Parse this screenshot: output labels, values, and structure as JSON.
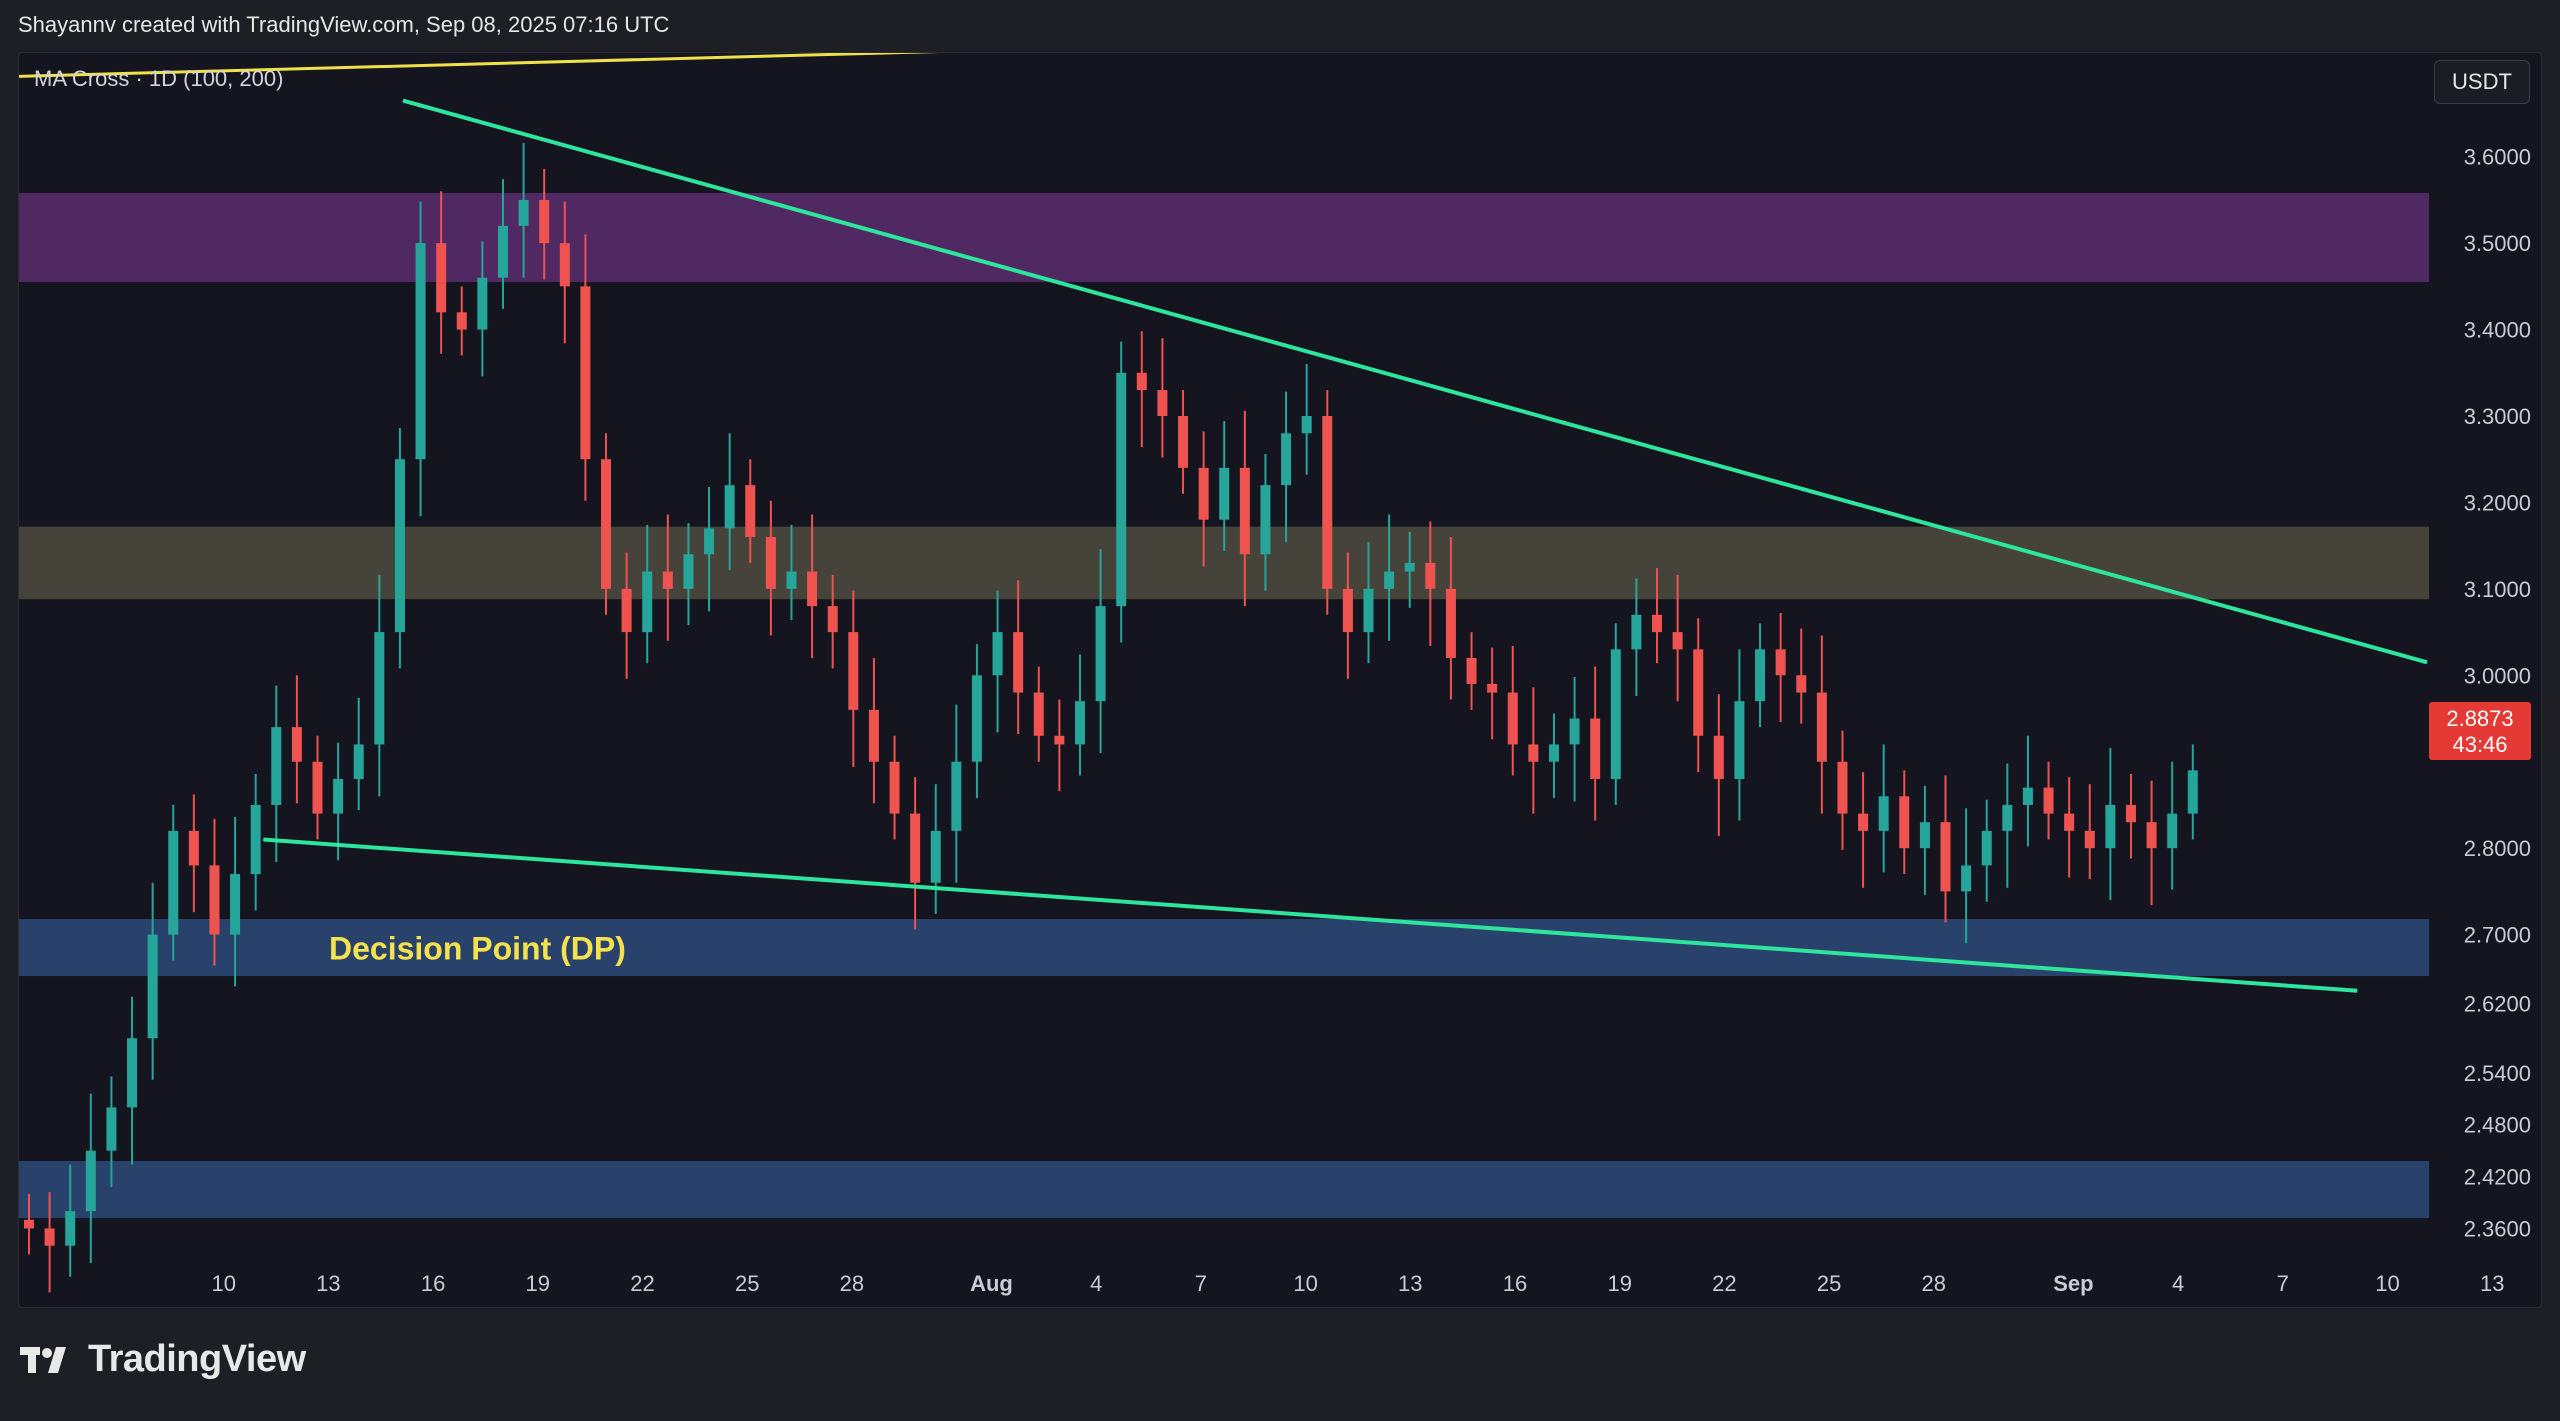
{
  "header": {
    "credit": "Shayannv created with TradingView.com, Sep 08, 2025 07:16 UTC"
  },
  "indicator_label": "MA Cross · 1D (100, 200)",
  "currency_button": "USDT",
  "current_price": {
    "value": "2.8873",
    "countdown": "43:46"
  },
  "brand": {
    "name": "TradingView",
    "logo_icon": "tradingview-logo-icon"
  },
  "chart_data": {
    "type": "candlestick",
    "y_ticks": [
      "3.6000",
      "3.5000",
      "3.4000",
      "3.3000",
      "3.2000",
      "3.1000",
      "3.0000",
      "2.8000",
      "2.7000",
      "2.6200",
      "2.5400",
      "2.4800",
      "2.4200",
      "2.3600"
    ],
    "x_ticks": [
      "10",
      "13",
      "16",
      "19",
      "22",
      "25",
      "28",
      "Aug",
      "4",
      "7",
      "10",
      "13",
      "16",
      "19",
      "22",
      "25",
      "28",
      "Sep",
      "4",
      "7",
      "10",
      "13"
    ],
    "ylim": [
      2.32,
      3.72
    ],
    "zones": [
      {
        "name": "purple",
        "from": 3.455,
        "to": 3.558,
        "color": "#5b2d6e"
      },
      {
        "name": "olive",
        "from": 3.088,
        "to": 3.172,
        "color": "#4f4c3f"
      },
      {
        "name": "dp",
        "from": 2.652,
        "to": 2.718,
        "color": "#2b4a7a",
        "label": "Decision Point (DP)"
      },
      {
        "name": "low",
        "from": 2.372,
        "to": 2.438,
        "color": "#2b4a7a"
      }
    ],
    "trendlines": [
      {
        "name": "upper-yellow",
        "color": "#f0e14a",
        "points": [
          [
            "Jul 7",
            3.693
          ],
          [
            "Sep 12",
            3.766
          ]
        ]
      },
      {
        "name": "wedge-top",
        "color": "#2ee59d",
        "points": [
          [
            "Jul 18",
            3.665
          ],
          [
            "Sep 14",
            3.015
          ]
        ]
      },
      {
        "name": "wedge-bottom",
        "color": "#2ee59d",
        "points": [
          [
            "Jul 14",
            2.81
          ],
          [
            "Sep 12",
            2.635
          ]
        ]
      }
    ],
    "candles_close": [
      [
        0,
        2.36
      ],
      [
        1,
        2.34
      ],
      [
        2,
        2.38
      ],
      [
        3,
        2.45
      ],
      [
        4,
        2.5
      ],
      [
        5,
        2.58
      ],
      [
        6,
        2.7
      ],
      [
        7,
        2.82
      ],
      [
        8,
        2.78
      ],
      [
        9,
        2.7
      ],
      [
        10,
        2.77
      ],
      [
        11,
        2.85
      ],
      [
        12,
        2.94
      ],
      [
        13,
        2.9
      ],
      [
        14,
        2.84
      ],
      [
        15,
        2.88
      ],
      [
        16,
        2.92
      ],
      [
        17,
        3.05
      ],
      [
        18,
        3.25
      ],
      [
        19,
        3.5
      ],
      [
        20,
        3.42
      ],
      [
        21,
        3.4
      ],
      [
        22,
        3.46
      ],
      [
        23,
        3.52
      ],
      [
        24,
        3.55
      ],
      [
        25,
        3.5
      ],
      [
        26,
        3.45
      ],
      [
        27,
        3.25
      ],
      [
        28,
        3.1
      ],
      [
        29,
        3.05
      ],
      [
        30,
        3.12
      ],
      [
        31,
        3.1
      ],
      [
        32,
        3.14
      ],
      [
        33,
        3.17
      ],
      [
        34,
        3.22
      ],
      [
        35,
        3.16
      ],
      [
        36,
        3.1
      ],
      [
        37,
        3.12
      ],
      [
        38,
        3.08
      ],
      [
        39,
        3.05
      ],
      [
        40,
        2.96
      ],
      [
        41,
        2.9
      ],
      [
        42,
        2.84
      ],
      [
        43,
        2.76
      ],
      [
        44,
        2.82
      ],
      [
        45,
        2.9
      ],
      [
        46,
        3.0
      ],
      [
        47,
        3.05
      ],
      [
        48,
        2.98
      ],
      [
        49,
        2.93
      ],
      [
        50,
        2.92
      ],
      [
        51,
        2.97
      ],
      [
        52,
        3.08
      ],
      [
        53,
        3.35
      ],
      [
        54,
        3.33
      ],
      [
        55,
        3.3
      ],
      [
        56,
        3.24
      ],
      [
        57,
        3.18
      ],
      [
        58,
        3.24
      ],
      [
        59,
        3.14
      ],
      [
        60,
        3.22
      ],
      [
        61,
        3.28
      ],
      [
        62,
        3.3
      ],
      [
        63,
        3.1
      ],
      [
        64,
        3.05
      ],
      [
        65,
        3.1
      ],
      [
        66,
        3.12
      ],
      [
        67,
        3.13
      ],
      [
        68,
        3.1
      ],
      [
        69,
        3.02
      ],
      [
        70,
        2.99
      ],
      [
        71,
        2.98
      ],
      [
        72,
        2.92
      ],
      [
        73,
        2.9
      ],
      [
        74,
        2.92
      ],
      [
        75,
        2.95
      ],
      [
        76,
        2.88
      ],
      [
        77,
        3.03
      ],
      [
        78,
        3.07
      ],
      [
        79,
        3.05
      ],
      [
        80,
        3.03
      ],
      [
        81,
        2.93
      ],
      [
        82,
        2.88
      ],
      [
        83,
        2.97
      ],
      [
        84,
        3.03
      ],
      [
        85,
        3.0
      ],
      [
        86,
        2.98
      ],
      [
        87,
        2.9
      ],
      [
        88,
        2.84
      ],
      [
        89,
        2.82
      ],
      [
        90,
        2.86
      ],
      [
        91,
        2.8
      ],
      [
        92,
        2.83
      ],
      [
        93,
        2.75
      ],
      [
        94,
        2.78
      ],
      [
        95,
        2.82
      ],
      [
        96,
        2.85
      ],
      [
        97,
        2.87
      ],
      [
        98,
        2.84
      ],
      [
        99,
        2.82
      ],
      [
        100,
        2.8
      ],
      [
        101,
        2.85
      ],
      [
        102,
        2.83
      ],
      [
        103,
        2.8
      ],
      [
        104,
        2.84
      ],
      [
        105,
        2.89
      ]
    ]
  }
}
